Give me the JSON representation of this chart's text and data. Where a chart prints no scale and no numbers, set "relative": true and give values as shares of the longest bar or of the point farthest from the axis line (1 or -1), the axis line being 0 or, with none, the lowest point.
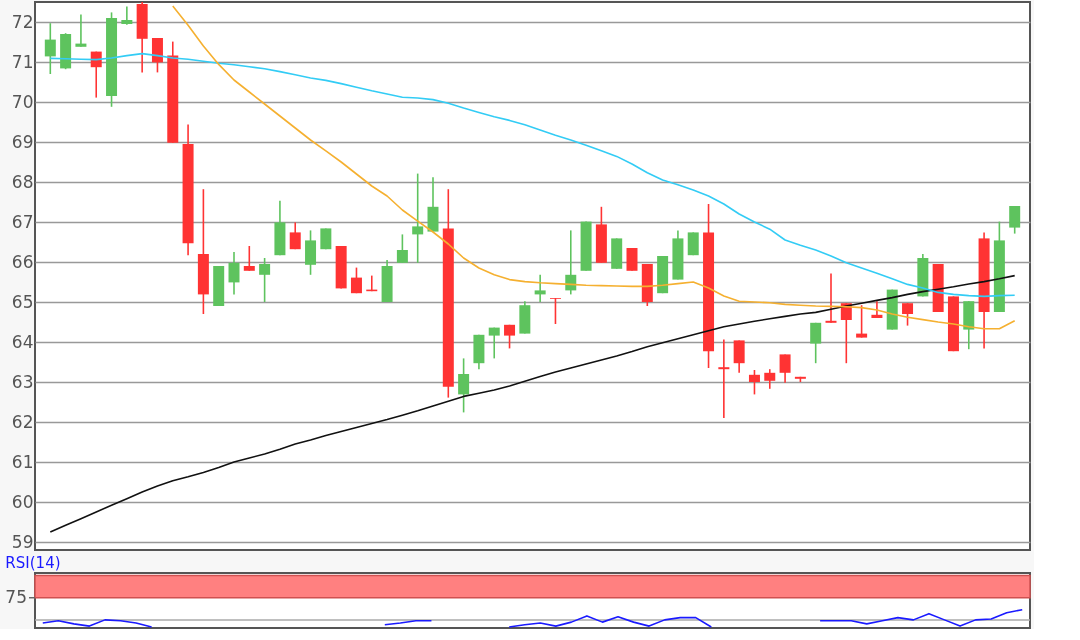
{
  "chart_data": [
    {
      "type": "candlestick",
      "tick_labels": "y",
      "grid": "y",
      "ylim": [
        58.8,
        72.5
      ],
      "yticks": [
        59,
        60,
        61,
        62,
        63,
        64,
        65,
        66,
        67,
        68,
        69,
        70,
        71,
        72
      ],
      "categories": [
        null,
        null,
        null,
        null,
        null,
        null,
        null,
        null,
        null,
        null,
        null,
        null,
        null,
        null,
        null,
        null,
        null,
        null,
        null,
        null,
        null,
        null,
        null,
        null,
        null,
        null,
        null,
        null,
        null,
        null,
        null,
        null,
        null,
        null,
        null,
        null,
        null,
        null,
        null,
        null,
        null,
        null,
        null,
        null,
        null,
        null,
        null,
        null,
        null,
        null,
        null,
        null,
        null,
        null,
        null,
        null,
        null,
        null,
        null,
        null,
        null,
        null,
        null,
        null
      ],
      "ohlc": [
        [
          71.14,
          71.97,
          70.7,
          71.56
        ],
        [
          70.84,
          71.72,
          70.82,
          71.7
        ],
        [
          71.38,
          72.19,
          71.38,
          71.46
        ],
        [
          71.26,
          71.26,
          70.11,
          70.87
        ],
        [
          70.15,
          72.24,
          69.88,
          72.1
        ],
        [
          71.95,
          72.39,
          71.93,
          72.05
        ],
        [
          72.45,
          72.5,
          70.74,
          71.58
        ],
        [
          71.6,
          71.6,
          70.74,
          70.99
        ],
        [
          71.16,
          71.51,
          68.98,
          68.98
        ],
        [
          68.95,
          69.44,
          66.17,
          66.47
        ],
        [
          66.2,
          67.82,
          64.7,
          65.19
        ],
        [
          64.9,
          65.9,
          64.9,
          65.9
        ],
        [
          65.49,
          66.25,
          65.19,
          65.98
        ],
        [
          65.9,
          66.4,
          65.78,
          65.78
        ],
        [
          65.68,
          66.1,
          65.0,
          65.95
        ],
        [
          66.17,
          67.53,
          66.17,
          66.99
        ],
        [
          66.74,
          66.99,
          66.32,
          66.32
        ],
        [
          65.93,
          66.79,
          65.68,
          66.54
        ],
        [
          66.32,
          66.84,
          66.32,
          66.84
        ],
        [
          66.4,
          66.4,
          65.34,
          65.34
        ],
        [
          65.61,
          65.86,
          65.22,
          65.22
        ],
        [
          65.31,
          65.66,
          65.27,
          65.27
        ],
        [
          65.0,
          66.05,
          65.0,
          65.9
        ],
        [
          65.98,
          66.69,
          65.98,
          66.3
        ],
        [
          66.69,
          68.21,
          65.98,
          66.89
        ],
        [
          66.76,
          68.12,
          66.76,
          67.38
        ],
        [
          66.84,
          67.82,
          62.61,
          62.88
        ],
        [
          62.69,
          63.59,
          62.24,
          63.2
        ],
        [
          63.47,
          64.18,
          63.32,
          64.18
        ],
        [
          64.16,
          64.36,
          63.59,
          64.36
        ],
        [
          64.43,
          64.43,
          63.84,
          64.16
        ],
        [
          64.21,
          65.02,
          64.21,
          64.92
        ],
        [
          65.19,
          65.68,
          65.0,
          65.29
        ],
        [
          65.1,
          65.1,
          64.45,
          65.08
        ],
        [
          65.29,
          66.79,
          65.19,
          65.68
        ],
        [
          65.78,
          67.01,
          65.78,
          67.01
        ],
        [
          66.94,
          67.38,
          65.98,
          65.98
        ],
        [
          65.83,
          66.59,
          65.83,
          66.59
        ],
        [
          66.35,
          66.35,
          65.78,
          65.78
        ],
        [
          65.95,
          65.95,
          64.9,
          65.0
        ],
        [
          65.22,
          66.15,
          65.22,
          66.15
        ],
        [
          65.56,
          66.79,
          65.56,
          66.59
        ],
        [
          66.17,
          66.74,
          66.17,
          66.74
        ],
        [
          66.74,
          67.45,
          63.35,
          63.77
        ],
        [
          63.37,
          64.06,
          62.1,
          63.32
        ],
        [
          64.04,
          64.04,
          63.23,
          63.47
        ],
        [
          63.18,
          63.3,
          62.69,
          63.0
        ],
        [
          63.23,
          63.32,
          62.83,
          63.03
        ],
        [
          63.69,
          63.69,
          62.98,
          63.23
        ],
        [
          63.13,
          63.13,
          63.0,
          63.08
        ],
        [
          63.96,
          64.48,
          63.47,
          64.48
        ],
        [
          64.53,
          65.71,
          64.48,
          64.48
        ],
        [
          64.97,
          64.97,
          63.47,
          64.55
        ],
        [
          64.21,
          64.92,
          64.11,
          64.11
        ],
        [
          64.68,
          65.02,
          64.6,
          64.6
        ],
        [
          64.31,
          65.31,
          64.31,
          65.31
        ],
        [
          64.97,
          64.97,
          64.41,
          64.7
        ],
        [
          65.14,
          66.2,
          65.14,
          66.1
        ],
        [
          65.95,
          65.95,
          64.75,
          64.75
        ],
        [
          65.14,
          65.14,
          63.77,
          63.77
        ],
        [
          64.31,
          65.02,
          63.82,
          65.02
        ],
        [
          66.59,
          66.74,
          63.84,
          64.75
        ],
        [
          64.75,
          67.01,
          64.75,
          66.54
        ],
        [
          66.86,
          67.4,
          66.71,
          67.4
        ]
      ],
      "colors": [
        "#5ec35e",
        "#5ec35e",
        "#5ec35e",
        "#ff3333",
        "#5ec35e",
        "#5ec35e",
        "#ff3333",
        "#ff3333",
        "#ff3333",
        "#ff3333",
        "#ff3333",
        "#5ec35e",
        "#5ec35e",
        "#ff3333",
        "#5ec35e",
        "#5ec35e",
        "#ff3333",
        "#5ec35e",
        "#5ec35e",
        "#ff3333",
        "#ff3333",
        "#ff3333",
        "#5ec35e",
        "#5ec35e",
        "#5ec35e",
        "#5ec35e",
        "#ff3333",
        "#5ec35e",
        "#5ec35e",
        "#5ec35e",
        "#ff3333",
        "#5ec35e",
        "#5ec35e",
        "#ff3333",
        "#5ec35e",
        "#5ec35e",
        "#ff3333",
        "#5ec35e",
        "#ff3333",
        "#ff3333",
        "#5ec35e",
        "#5ec35e",
        "#5ec35e",
        "#ff3333",
        "#ff3333",
        "#ff3333",
        "#ff3333",
        "#ff3333",
        "#ff3333",
        "#ff3333",
        "#5ec35e",
        "#ff3333",
        "#ff3333",
        "#ff3333",
        "#ff3333",
        "#5ec35e",
        "#ff3333",
        "#5ec35e",
        "#ff3333",
        "#ff3333",
        "#5ec35e",
        "#ff3333",
        "#5ec35e",
        "#5ec35e"
      ],
      "series": [
        {
          "type": "line",
          "color": "#111111",
          "values": [
            59.25,
            59.42,
            59.58,
            59.75,
            59.92,
            60.08,
            60.25,
            60.4,
            60.53,
            60.63,
            60.74,
            60.86,
            61.0,
            61.1,
            61.2,
            61.32,
            61.45,
            61.55,
            61.66,
            61.76,
            61.86,
            61.96,
            62.06,
            62.17,
            62.28,
            62.4,
            62.52,
            62.64,
            62.72,
            62.8,
            62.9,
            63.02,
            63.14,
            63.25,
            63.35,
            63.45,
            63.55,
            63.65,
            63.76,
            63.88,
            63.98,
            64.08,
            64.18,
            64.28,
            64.38,
            64.45,
            64.52,
            64.58,
            64.64,
            64.7,
            64.74,
            64.82,
            64.9,
            64.97,
            65.04,
            65.11,
            65.19,
            65.26,
            65.32,
            65.38,
            65.45,
            65.51,
            65.58,
            65.66
          ]
        },
        {
          "type": "line",
          "color": "#33ccf5",
          "values": [
            71.09,
            71.08,
            71.07,
            71.06,
            71.1,
            71.16,
            71.21,
            71.16,
            71.1,
            71.07,
            71.02,
            70.97,
            70.93,
            70.88,
            70.83,
            70.76,
            70.68,
            70.6,
            70.54,
            70.46,
            70.37,
            70.28,
            70.2,
            70.12,
            70.1,
            70.06,
            69.97,
            69.85,
            69.74,
            69.63,
            69.54,
            69.43,
            69.3,
            69.17,
            69.05,
            68.92,
            68.78,
            68.64,
            68.45,
            68.23,
            68.05,
            67.93,
            67.8,
            67.65,
            67.45,
            67.2,
            67.0,
            66.82,
            66.55,
            66.42,
            66.3,
            66.15,
            65.98,
            65.85,
            65.72,
            65.58,
            65.44,
            65.35,
            65.24,
            65.19,
            65.16,
            65.14,
            65.16,
            65.17
          ]
        },
        {
          "type": "line",
          "color": "#f5b030",
          "values": [
            null,
            null,
            null,
            null,
            null,
            null,
            null,
            null,
            72.4,
            71.92,
            71.4,
            70.94,
            70.55,
            70.25,
            69.95,
            69.65,
            69.35,
            69.05,
            68.78,
            68.5,
            68.2,
            67.9,
            67.65,
            67.3,
            67.02,
            66.75,
            66.45,
            66.1,
            65.85,
            65.68,
            65.56,
            65.51,
            65.48,
            65.46,
            65.44,
            65.42,
            65.41,
            65.4,
            65.39,
            65.39,
            65.42,
            65.46,
            65.5,
            65.35,
            65.15,
            65.02,
            65.0,
            64.98,
            64.94,
            64.92,
            64.9,
            64.89,
            64.88,
            64.86,
            64.8,
            64.7,
            64.62,
            64.56,
            64.5,
            64.45,
            64.38,
            64.33,
            64.33,
            64.53
          ]
        }
      ]
    },
    {
      "type": "line",
      "title": "RSI(14)",
      "relative": true,
      "tick_labels": false,
      "annotations": [
        "75"
      ],
      "ref_lines": [
        {
          "axis": "y",
          "value": 0.41,
          "color": "#aaaaaa"
        }
      ],
      "categories": [
        null,
        null,
        null,
        null,
        null,
        null,
        null,
        null,
        null,
        null,
        null,
        null,
        null,
        null,
        null,
        null,
        null,
        null,
        null,
        null,
        null,
        null,
        null,
        null,
        null,
        null,
        null,
        null,
        null,
        null,
        null,
        null,
        null,
        null,
        null,
        null,
        null,
        null,
        null,
        null,
        null,
        null,
        null,
        null,
        null,
        null,
        null,
        null,
        null,
        null,
        null,
        null,
        null,
        null,
        null,
        null,
        null,
        null,
        null,
        null,
        null,
        null,
        null,
        null
      ],
      "bands": [
        {
          "axis": "y",
          "from": 1.69,
          "to": 2.97,
          "color": "#ff8080"
        }
      ],
      "series": [
        {
          "color": "#1a1aff",
          "values": [
            0.23,
            0.36,
            0.18,
            0.05,
            0.41,
            0.36,
            0.23,
            0,
            null,
            null,
            null,
            null,
            null,
            null,
            null,
            null,
            null,
            null,
            null,
            null,
            null,
            null,
            null,
            null,
            null,
            null,
            null,
            null,
            null,
            null,
            null,
            null,
            null,
            null,
            null,
            null,
            null,
            null,
            null,
            null,
            null,
            null,
            null,
            null,
            null,
            null,
            null,
            null,
            null,
            null,
            null,
            null,
            null,
            null,
            null,
            null,
            null,
            null,
            null,
            null,
            null,
            null,
            null,
            null
          ]
        },
        {
          "color": "#1a1aff",
          "values": [
            null,
            null,
            null,
            null,
            null,
            null,
            null,
            null,
            null,
            null,
            null,
            null,
            null,
            null,
            null,
            null,
            null,
            null,
            null,
            null,
            null,
            null,
            0.13,
            0.23,
            0.36,
            0.36,
            null,
            null,
            null,
            null,
            null,
            null,
            null,
            null,
            null,
            null,
            null,
            null,
            null,
            null,
            null,
            null,
            null,
            null,
            null,
            null,
            null,
            null,
            null,
            null,
            null,
            null,
            null,
            null,
            null,
            null,
            null,
            null,
            null,
            null,
            null,
            null,
            null,
            null
          ]
        },
        {
          "color": "#1a1aff",
          "values": [
            null,
            null,
            null,
            null,
            null,
            null,
            null,
            null,
            null,
            null,
            null,
            null,
            null,
            null,
            null,
            null,
            null,
            null,
            null,
            null,
            null,
            null,
            null,
            null,
            null,
            null,
            null,
            null,
            null,
            null,
            0,
            0.13,
            0.23,
            0.05,
            0.28,
            0.64,
            0.28,
            0.59,
            0.28,
            0.05,
            0.41,
            0.54,
            0.54,
            0,
            null,
            null,
            null,
            null,
            null,
            null,
            null,
            null,
            null,
            null,
            null,
            null,
            null,
            null,
            null,
            null,
            null,
            null,
            null,
            null
          ]
        },
        {
          "color": "#1a1aff",
          "values": [
            null,
            null,
            null,
            null,
            null,
            null,
            null,
            null,
            null,
            null,
            null,
            null,
            null,
            null,
            null,
            null,
            null,
            null,
            null,
            null,
            null,
            null,
            null,
            null,
            null,
            null,
            null,
            null,
            null,
            null,
            null,
            null,
            null,
            null,
            null,
            null,
            null,
            null,
            null,
            null,
            null,
            null,
            null,
            null,
            null,
            null,
            null,
            null,
            null,
            null,
            0.36,
            0.36,
            0.36,
            0.18,
            0.36,
            0.54,
            0.41,
            0.77,
            0.41,
            0.05,
            0.41,
            0.46,
            0.82,
            1
          ]
        }
      ]
    }
  ]
}
